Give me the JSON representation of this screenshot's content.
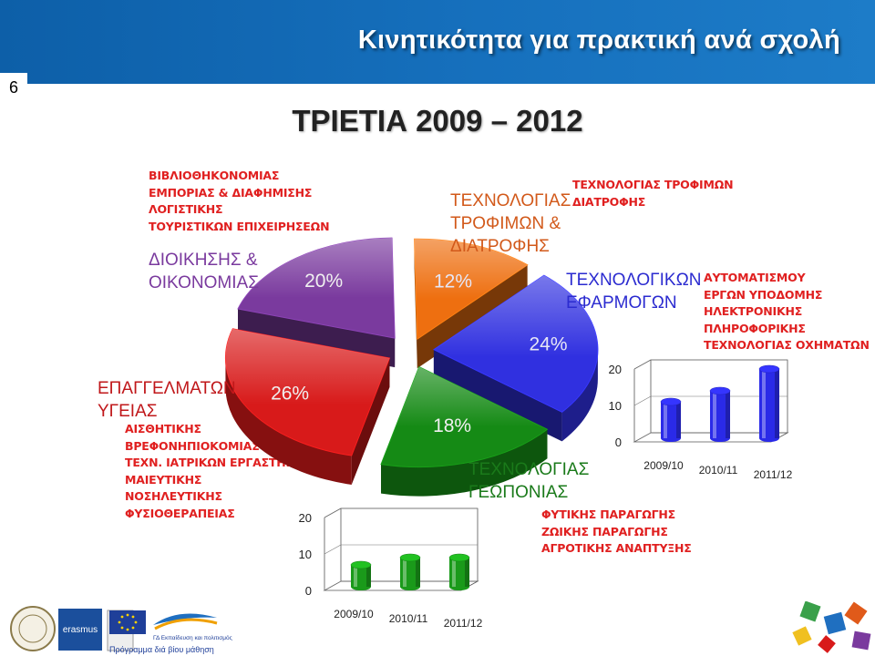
{
  "page_number": "6",
  "header_title": "Κινητικότητα για πρακτική ανά σχολή",
  "main_title": "ΤΡΙΕΤΙΑ 2009 – 2012",
  "footer_caption": "Πρόγραμμα διά βίου μάθηση",
  "footer_subcaption": "ΓΔ Εκπαίδευση και πολιτισμός",
  "colors": {
    "header_bg": "#1670bd",
    "purple": "#7a3a9e",
    "orange": "#ee6f10",
    "blue": "#3030e0",
    "green": "#158a15",
    "red": "#d81a1a",
    "list_red": "#e02020"
  },
  "lists": {
    "dioikisis": [
      "ΒΙΒΛΙΟΘΗΚΟΝΟΜΙΑΣ",
      "ΕΜΠΟΡΙΑΣ & ΔΙΑΦΗΜΙΣΗΣ",
      "ΛΟΓΙΣΤΙΚΗΣ",
      "ΤΟΥΡΙΣΤΙΚΩΝ ΕΠΙΧΕΙΡΗΣΕΩΝ"
    ],
    "ygeias": [
      "ΑΙΣΘΗΤΙΚΗΣ",
      "ΒΡΕΦΟΝΗΠΙΟΚΟΜΙΑΣ",
      "ΤΕΧΝ. ΙΑΤΡΙΚΩΝ ΕΡΓΑΣΤΗΡΙΩΝ",
      "ΜΑΙΕΥΤΙΚΗΣ",
      "ΝΟΣΗΛΕΥΤΙΚΗΣ",
      "ΦΥΣΙΟΘΕΡΑΠΕΙΑΣ"
    ],
    "trofimon": [
      "ΤΕΧΝΟΛΟΓΙΑΣ ΤΡΟΦΙΜΩΝ",
      "ΔΙΑΤΡΟΦΗΣ"
    ],
    "efarmogon": [
      "ΑΥΤΟΜΑΤΙΣΜΟΥ",
      "ΕΡΓΩΝ ΥΠΟΔΟΜΗΣ",
      "ΗΛΕΚΤΡΟΝΙΚΗΣ",
      "ΠΛΗΡΟΦΟΡΙΚΗΣ",
      "ΤΕΧΝΟΛΟΓΙΑΣ ΟΧΗΜΑΤΩΝ"
    ],
    "geoponias": [
      "ΦΥΤΙΚΗΣ ΠΑΡΑΓΩΓΗΣ",
      "ΖΩΙΚΗΣ ΠΑΡΑΓΩΓΗΣ",
      "ΑΓΡΟΤΙΚΗΣ ΑΝΑΠΤΥΞΗΣ"
    ]
  },
  "pie_labels": {
    "dioikisis": [
      "ΔΙΟΙΚΗΣΗΣ &",
      "ΟΙΚΟΝΟΜΙΑΣ"
    ],
    "trofimon": [
      "ΤΕΧΝΟΛΟΓΙΑΣ",
      "ΤΡΟΦΙΜΩΝ &",
      "ΔΙΑΤΡΟΦΗΣ"
    ],
    "efarmogon": [
      "ΤΕΧΝΟΛΟΓΙΚΩΝ",
      "ΕΦΑΡΜΟΓΩΝ"
    ],
    "ygeias": [
      "ΕΠΑΓΓΕΛΜΑΤΩΝ",
      "ΥΓΕΙΑΣ"
    ],
    "geoponias": [
      "ΤΕΧΝΟΛΟΓΙΑΣ",
      "ΓΕΩΠΟΝΙΑΣ"
    ]
  },
  "chart_data": [
    {
      "type": "pie",
      "style": "3d-exploded",
      "labels": [
        "ΔΙΟΙΚΗΣΗΣ & ΟΙΚΟΝΟΜΙΑΣ",
        "ΤΕΧΝΟΛΟΓΙΑΣ ΤΡΟΦΙΜΩΝ & ΔΙΑΤΡΟΦΗΣ",
        "ΤΕΧΝΟΛΟΓΙΚΩΝ ΕΦΑΡΜΟΓΩΝ",
        "ΤΕΧΝΟΛΟΓΙΑΣ ΓΕΩΠΟΝΙΑΣ",
        "ΕΠΑΓΓΕΛΜΑΤΩΝ ΥΓΕΙΑΣ"
      ],
      "values": [
        20,
        12,
        24,
        18,
        26
      ],
      "value_labels": [
        "20%",
        "12%",
        "24%",
        "18%",
        "26%"
      ],
      "colors": [
        "#7a3a9e",
        "#ee6f10",
        "#3030e0",
        "#158a15",
        "#d81a1a"
      ]
    },
    {
      "type": "bar",
      "style": "3d-cylinder",
      "categories": [
        "2009/10",
        "2010/11",
        "2011/12"
      ],
      "values": [
        10,
        13,
        19
      ],
      "y_ticks": [
        "0",
        "10",
        "20"
      ],
      "ylim": [
        0,
        20
      ],
      "color": "#2a2ae8"
    },
    {
      "type": "bar",
      "style": "3d-cylinder",
      "categories": [
        "2009/10",
        "2010/11",
        "2011/12"
      ],
      "values": [
        6,
        8,
        8
      ],
      "y_ticks": [
        "0",
        "10",
        "20"
      ],
      "ylim": [
        0,
        20
      ],
      "color": "#1a9a1a"
    }
  ]
}
